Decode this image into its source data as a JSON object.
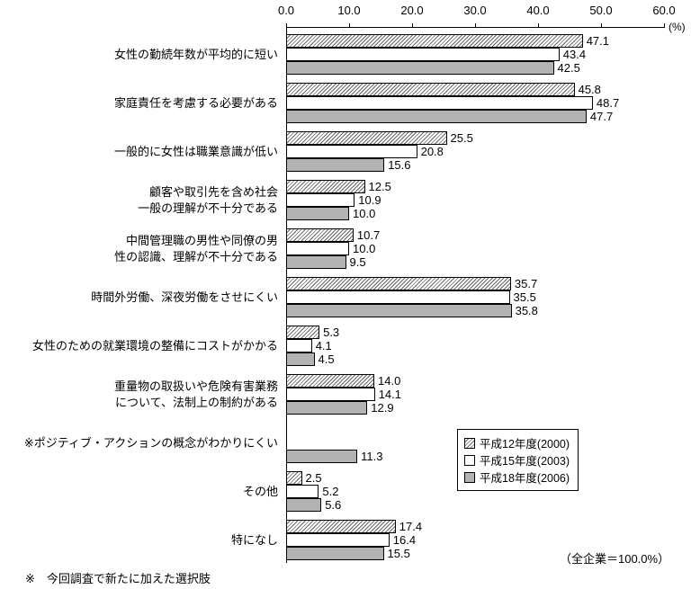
{
  "chart_data": {
    "type": "bar",
    "orientation": "horizontal",
    "x_axis": {
      "unit": "(%)",
      "min": 0,
      "max": 60,
      "ticks": [
        "0.0",
        "10.0",
        "20.0",
        "30.0",
        "40.0",
        "50.0",
        "60.0"
      ]
    },
    "series": [
      {
        "name": "平成12年度(2000)",
        "pattern": "hatch",
        "fill": "#ffffff"
      },
      {
        "name": "平成15年度(2003)",
        "pattern": "plain",
        "fill": "#ffffff"
      },
      {
        "name": "平成18年度(2006)",
        "pattern": "plain",
        "fill": "#b3b3b3"
      }
    ],
    "categories": [
      {
        "label": "女性の勤続年数が平均的に短い",
        "values": [
          47.1,
          43.4,
          42.5
        ]
      },
      {
        "label": "家庭責任を考慮する必要がある",
        "values": [
          45.8,
          48.7,
          47.7
        ]
      },
      {
        "label": "一般的に女性は職業意識が低い",
        "values": [
          25.5,
          20.8,
          15.6
        ]
      },
      {
        "label": "顧客や取引先を含め社会\n一般の理解が不十分である",
        "values": [
          12.5,
          10.9,
          10.0
        ]
      },
      {
        "label": "中間管理職の男性や同僚の男\n性の認識、理解が不十分である",
        "values": [
          10.7,
          10.0,
          9.5
        ]
      },
      {
        "label": "時間外労働、深夜労働をさせにくい",
        "values": [
          35.7,
          35.5,
          35.8
        ]
      },
      {
        "label": "女性のための就業環境の整備にコストがかかる",
        "values": [
          5.3,
          4.1,
          4.5
        ]
      },
      {
        "label": "重量物の取扱いや危険有害業務\nについて、法制上の制約がある",
        "values": [
          14.0,
          14.1,
          12.9
        ]
      },
      {
        "label": "※ポジティブ・アクションの概念がわかりにくい",
        "values": [
          null,
          null,
          11.3
        ]
      },
      {
        "label": "その他",
        "values": [
          2.5,
          5.2,
          5.6
        ]
      },
      {
        "label": "特になし",
        "values": [
          17.4,
          16.4,
          15.5
        ]
      }
    ],
    "legend_position": "inside-right",
    "grid": false,
    "footnote": "※　今回調査で新たに加えた選択肢",
    "note_right": "（全企業＝100.0%）"
  },
  "colors": {
    "axis": "#000000",
    "bar_border": "#000000",
    "gray_fill": "#b3b3b3",
    "white_fill": "#ffffff",
    "background": "#ffffff"
  }
}
